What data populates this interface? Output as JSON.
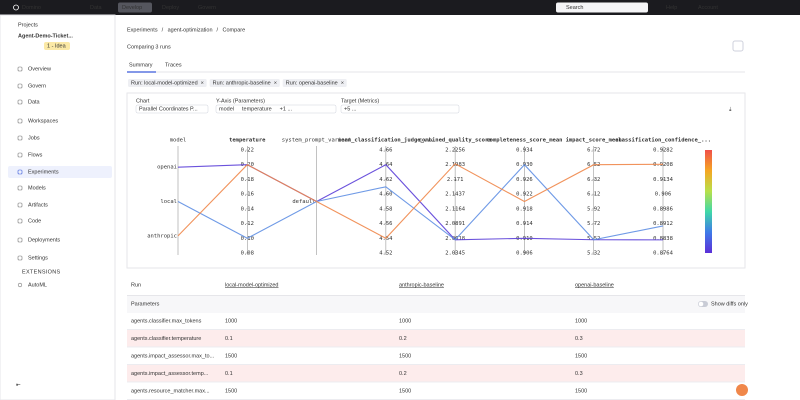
{
  "nav": {
    "logo": "Domino",
    "menu": [
      "Data",
      "Develop",
      "Deploy",
      "Govern"
    ],
    "search": "Search",
    "help": "Help",
    "account": "Account"
  },
  "sidebar": {
    "section": "Projects",
    "project": "Agent-Demo-Ticket...",
    "stage": "1 - Idea",
    "items": [
      "Overview",
      "Govern",
      "Data",
      "Workspaces",
      "Jobs",
      "Flows",
      "Experiments",
      "Models",
      "Artifacts",
      "Code",
      "Deployments",
      "Settings"
    ],
    "extensions_heading": "EXTENSIONS",
    "extensions": [
      "AutoML"
    ]
  },
  "breadcrumb": [
    "Experiments",
    "agent-optimization",
    "Compare"
  ],
  "title": "Comparing 3 runs",
  "tabs": [
    "Summary",
    "Traces"
  ],
  "filters": [
    "Run: local-model-optimized",
    "Run: anthropic-baseline",
    "Run: openai-baseline"
  ],
  "controls": {
    "chart_label": "Chart",
    "chart_value": "Parallel Coordinates P...",
    "yaxis_label": "Y-Axis (Parameters)",
    "yaxis_values": [
      "model",
      "temperature",
      "+1 ..."
    ],
    "target_label": "Target (Metrics)",
    "target_values": [
      "+5 ..."
    ]
  },
  "chart_data": {
    "type": "parallel",
    "axes": [
      {
        "name": "model",
        "categories": [
          "openai",
          "local",
          "anthropic"
        ]
      },
      {
        "name": "temperature",
        "lim": [
          0.08,
          0.22
        ],
        "ticks": [
          0.22,
          {
            "value": 0.2,
            "label": "0.20"
          },
          0.18,
          0.16,
          0.14,
          0.12,
          {
            "value": 0.1,
            "label": "0.10"
          },
          0.08
        ]
      },
      {
        "name": "system_prompt_variant",
        "categories": [
          "default"
        ]
      },
      {
        "name": "mean_classification_judge_...",
        "lim": [
          4.52,
          4.66
        ],
        "ticks": [
          4.66,
          4.64,
          4.62,
          {
            "value": 4.6,
            "label": "4.60"
          },
          4.58,
          4.56,
          4.54,
          4.52
        ]
      },
      {
        "name": "combined_quality_score",
        "lim": [
          2.0345,
          2.2256
        ],
        "ticks": [
          2.2256,
          2.1983,
          2.171,
          2.1437,
          2.1164,
          2.0891,
          2.0618,
          2.0345
        ]
      },
      {
        "name": "completeness_score_mean",
        "lim": [
          0.906,
          0.934
        ],
        "ticks": [
          0.934,
          {
            "value": 0.93,
            "label": "0.930"
          },
          0.926,
          0.922,
          0.918,
          0.914,
          {
            "value": 0.91,
            "label": "0.910"
          },
          0.906
        ]
      },
      {
        "name": "impact_score_mean",
        "lim": [
          5.32,
          6.72
        ],
        "ticks": [
          6.72,
          6.52,
          6.32,
          6.12,
          5.92,
          5.72,
          5.52,
          5.32
        ]
      },
      {
        "name": "classification_confidence_...",
        "lim": [
          0.8764,
          0.9282
        ],
        "ticks": [
          0.9282,
          0.9208,
          0.9134,
          0.906,
          0.8986,
          0.8912,
          0.8838,
          0.8764
        ]
      }
    ],
    "series": [
      {
        "name": "openai-baseline",
        "color": "#5b3fd8",
        "values": [
          "openai",
          0.2,
          "default",
          4.64,
          2.059,
          0.91,
          5.5,
          0.883
        ]
      },
      {
        "name": "local-model-optimized",
        "color": "#5f8fe3",
        "values": [
          "local",
          0.1,
          "default",
          4.61,
          2.059,
          0.93,
          5.5,
          0.89
        ]
      },
      {
        "name": "anthropic-baseline",
        "color": "#f0874a",
        "values": [
          "anthropic",
          0.2,
          "default",
          4.54,
          2.2,
          0.92,
          6.52,
          0.921
        ]
      }
    ]
  },
  "table": {
    "header": [
      "Run",
      "local-model-optimized",
      "anthropic-baseline",
      "openai-baseline"
    ],
    "section": "Parameters",
    "toggle": "Show diffs only",
    "rows": [
      [
        "agents.classifier.max_tokens",
        1000,
        1000,
        1000
      ],
      [
        "agents.classifier.temperature",
        0.1,
        0.2,
        0.3
      ],
      [
        "agents.impact_assessor.max_to...",
        1500,
        1500,
        1500
      ],
      [
        "agents.impact_assessor.temp...",
        0.1,
        0.2,
        0.3
      ],
      [
        "agents.resource_matcher.max...",
        1500,
        1500,
        1500
      ]
    ]
  }
}
